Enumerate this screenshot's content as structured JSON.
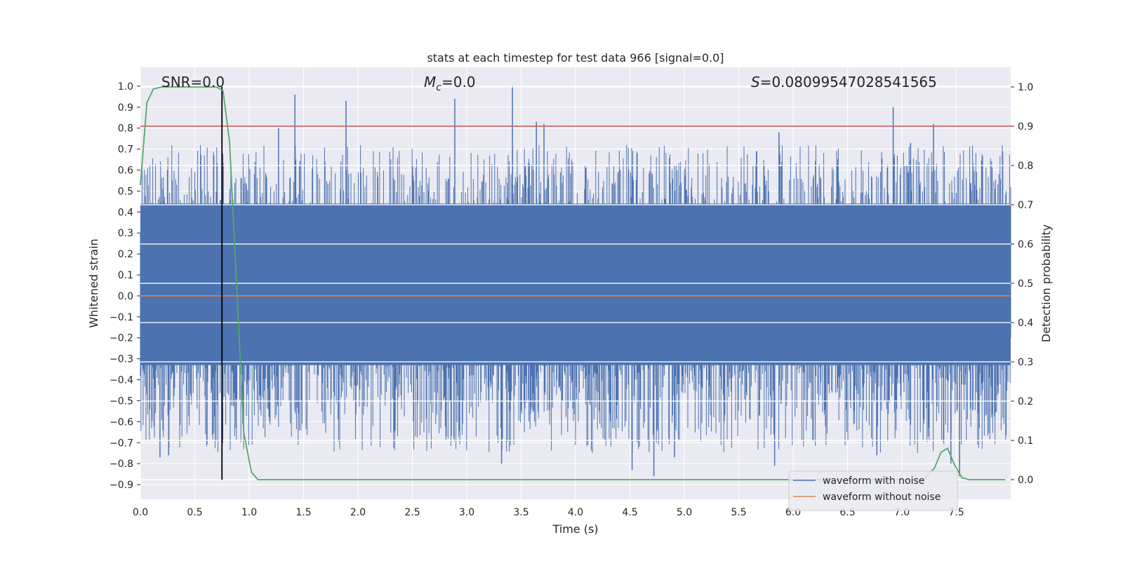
{
  "chart_data": {
    "type": "line",
    "title": "stats at each timestep for test data 966 [signal=0.0]",
    "xlabel": "Time (s)",
    "ylabel": "Whitened strain",
    "ylabel_right": "Detection probability",
    "xlim": [
      0.0,
      8.0
    ],
    "ylim": [
      -0.97,
      1.09
    ],
    "ylim_right": [
      -0.05,
      1.05
    ],
    "x_ticks": [
      0.0,
      0.5,
      1.0,
      1.5,
      2.0,
      2.5,
      3.0,
      3.5,
      4.0,
      4.5,
      5.0,
      5.5,
      6.0,
      6.5,
      7.0,
      7.5
    ],
    "x_tick_labels": [
      "0.0",
      "0.5",
      "1.0",
      "1.5",
      "2.0",
      "2.5",
      "3.0",
      "3.5",
      "4.0",
      "4.5",
      "5.0",
      "5.5",
      "6.0",
      "6.5",
      "7.0",
      "7.5"
    ],
    "y_ticks": [
      1.0,
      0.9,
      0.8,
      0.7,
      0.6,
      0.5,
      0.4,
      0.3,
      0.2,
      0.1,
      0.0,
      -0.1,
      -0.2,
      -0.3,
      -0.4,
      -0.5,
      -0.6,
      -0.7,
      -0.8,
      -0.9
    ],
    "y_tick_labels": [
      "1.0",
      "0.9",
      "0.8",
      "0.7",
      "0.6",
      "0.5",
      "0.4",
      "0.3",
      "0.2",
      "0.1",
      "0.0",
      "−0.1",
      "−0.2",
      "−0.3",
      "−0.4",
      "−0.5",
      "−0.6",
      "−0.7",
      "−0.8",
      "−0.9"
    ],
    "y_right_ticks": [
      1.0,
      0.9,
      0.8,
      0.7,
      0.6,
      0.5,
      0.4,
      0.3,
      0.2,
      0.1,
      0.0
    ],
    "y_right_tick_labels": [
      "1.0",
      "0.9",
      "0.8",
      "0.7",
      "0.6",
      "0.5",
      "0.4",
      "0.3",
      "0.2",
      "0.1",
      "0.0"
    ],
    "annotations": {
      "snr": "SNR=0.0",
      "mc_symbol": "M",
      "mc_sub": "c",
      "mc_value": "=0.0",
      "s_symbol": "S",
      "s_value": "=0.08099547028541565"
    },
    "threshold_right": 0.9,
    "marker_time": 0.75,
    "noise_series": {
      "name": "waveform with noise",
      "color": "#4c72b0",
      "band_low": -0.33,
      "band_high": 0.44,
      "peaks": [
        {
          "x": 1.42,
          "y": 0.96
        },
        {
          "x": 1.89,
          "y": 0.93
        },
        {
          "x": 2.89,
          "y": 0.94
        },
        {
          "x": 3.42,
          "y": 1.0
        },
        {
          "x": 3.64,
          "y": 0.83
        },
        {
          "x": 3.71,
          "y": 0.82
        },
        {
          "x": 6.92,
          "y": 0.9
        },
        {
          "x": 7.29,
          "y": 0.82
        },
        {
          "x": 1.27,
          "y": 0.8
        },
        {
          "x": 5.87,
          "y": 0.78
        },
        {
          "x": 7.08,
          "y": 0.73
        }
      ],
      "troughs": [
        {
          "x": 0.18,
          "y": -0.77
        },
        {
          "x": 0.26,
          "y": -0.76
        },
        {
          "x": 3.32,
          "y": -0.8
        },
        {
          "x": 4.52,
          "y": -0.83
        },
        {
          "x": 4.72,
          "y": -0.86
        },
        {
          "x": 4.91,
          "y": -0.77
        },
        {
          "x": 5.83,
          "y": -0.81
        },
        {
          "x": 6.77,
          "y": -0.76
        },
        {
          "x": 7.53,
          "y": -0.86
        },
        {
          "x": 7.45,
          "y": -0.8
        }
      ]
    },
    "clean_series": {
      "name": "waveform without noise",
      "color": "#dd8452",
      "value": 0.0
    },
    "probability_series": {
      "name": "detection probability",
      "color": "#55a868",
      "x": [
        0.0,
        0.06,
        0.12,
        0.2,
        0.3,
        0.5,
        0.7,
        0.76,
        0.82,
        0.88,
        0.95,
        1.02,
        1.08,
        1.15,
        1.5,
        7.0,
        7.2,
        7.3,
        7.36,
        7.42,
        7.48,
        7.55,
        7.62,
        7.7,
        7.95
      ],
      "y": [
        0.75,
        0.96,
        0.995,
        1.0,
        1.0,
        1.0,
        1.0,
        0.99,
        0.86,
        0.52,
        0.12,
        0.02,
        0.0,
        0.0,
        0.0,
        0.0,
        0.0,
        0.03,
        0.07,
        0.08,
        0.04,
        0.005,
        0.0,
        0.0,
        0.0
      ]
    },
    "threshold_color": "#c44e52",
    "marker_color": "#000000",
    "legend": [
      "waveform with noise",
      "waveform without noise"
    ],
    "legend_position": "lower right",
    "grid": true
  }
}
